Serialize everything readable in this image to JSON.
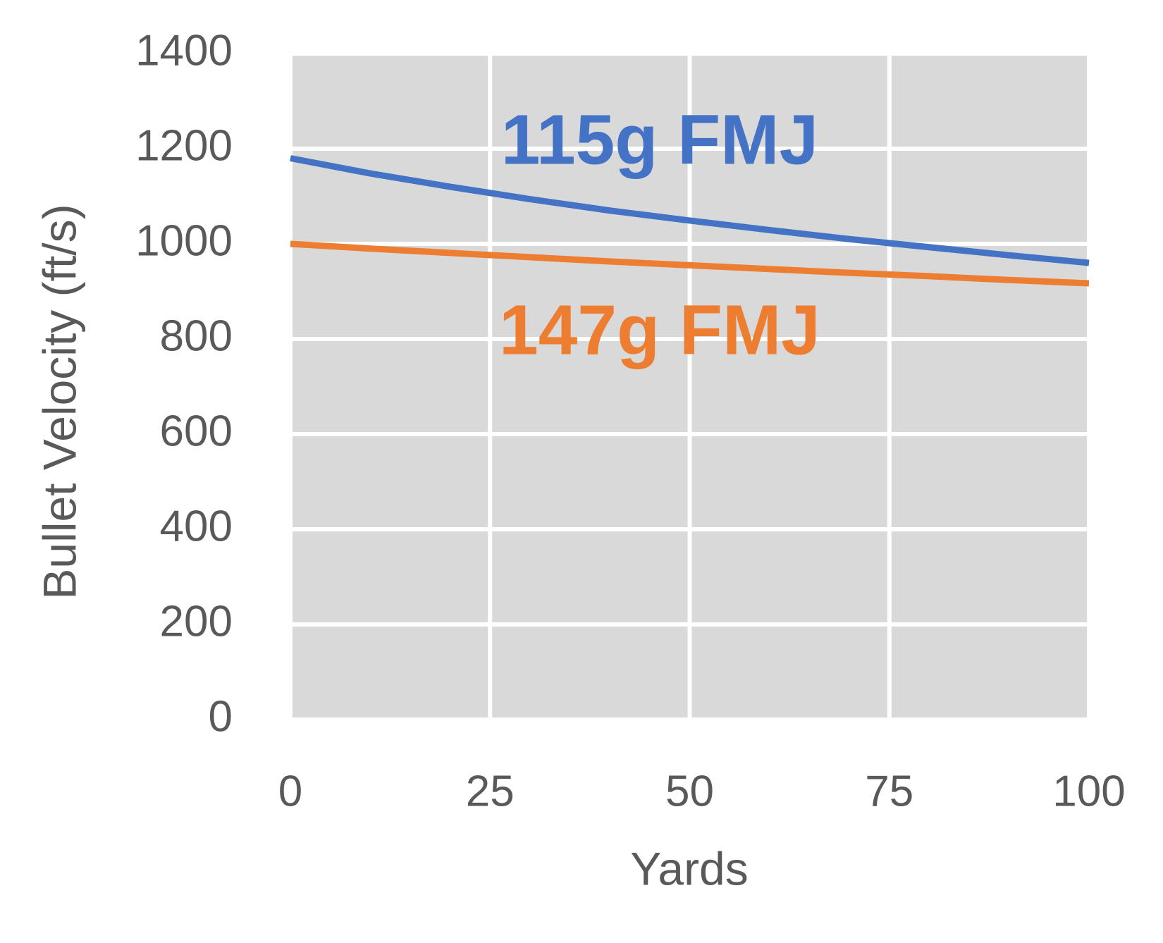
{
  "chart_data": {
    "type": "line",
    "x_label": "Yards",
    "y_label": "Bullet Velocity (ft/s)",
    "x": [
      0,
      10,
      20,
      30,
      40,
      50,
      60,
      70,
      80,
      90,
      100
    ],
    "series": [
      {
        "name": "115g FMJ",
        "color": "#4472c4",
        "values": [
          1180,
          1148,
          1120,
          1094,
          1070,
          1049,
          1029,
          1010,
          993,
          976,
          960
        ]
      },
      {
        "name": "147g FMJ",
        "color": "#ed7d31",
        "values": [
          1000,
          990,
          981,
          972,
          963,
          955,
          947,
          939,
          932,
          924,
          917
        ]
      }
    ],
    "xlim": [
      0,
      100
    ],
    "xticks": [
      0,
      25,
      50,
      75,
      100
    ],
    "ylim": [
      0,
      1400
    ],
    "yticks": [
      0,
      200,
      400,
      600,
      800,
      1000,
      1200,
      1400
    ],
    "grid": true,
    "plot_background": "#d9d9d9",
    "grid_color": "#ffffff"
  }
}
